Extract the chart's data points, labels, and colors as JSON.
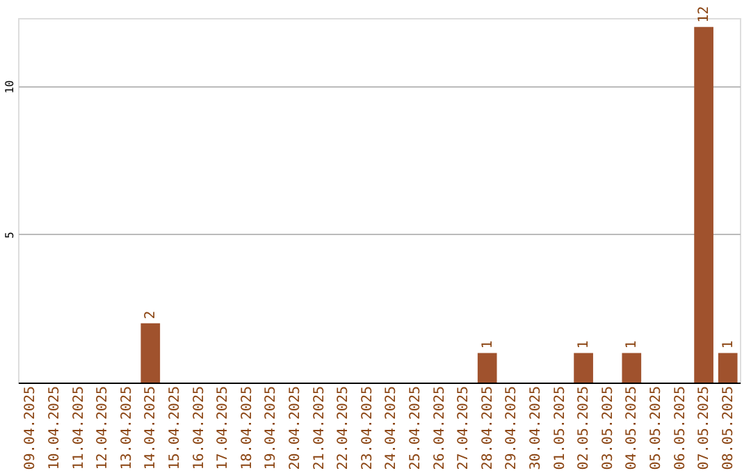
{
  "chart_data": {
    "type": "bar",
    "categories": [
      "09.04.2025",
      "10.04.2025",
      "11.04.2025",
      "12.04.2025",
      "13.04.2025",
      "14.04.2025",
      "15.04.2025",
      "16.04.2025",
      "17.04.2025",
      "18.04.2025",
      "19.04.2025",
      "20.04.2025",
      "21.04.2025",
      "22.04.2025",
      "23.04.2025",
      "24.04.2025",
      "25.04.2025",
      "26.04.2025",
      "27.04.2025",
      "28.04.2025",
      "29.04.2025",
      "30.04.2025",
      "01.05.2025",
      "02.05.2025",
      "03.05.2025",
      "04.05.2025",
      "05.05.2025",
      "06.05.2025",
      "07.05.2025",
      "08.05.2025"
    ],
    "values": [
      0,
      0,
      0,
      0,
      0,
      2,
      0,
      0,
      0,
      0,
      0,
      0,
      0,
      0,
      0,
      0,
      0,
      0,
      0,
      1,
      0,
      0,
      0,
      1,
      0,
      1,
      0,
      0,
      12,
      1
    ],
    "value_labels": [
      null,
      null,
      null,
      null,
      null,
      "2",
      null,
      null,
      null,
      null,
      null,
      null,
      null,
      null,
      null,
      null,
      null,
      null,
      null,
      "1",
      null,
      null,
      null,
      "1",
      null,
      "1",
      null,
      null,
      "12",
      "1"
    ],
    "color": "#a0522d",
    "ylim": [
      0,
      12.3
    ],
    "yticks": [
      5,
      10
    ],
    "grid": "y"
  }
}
